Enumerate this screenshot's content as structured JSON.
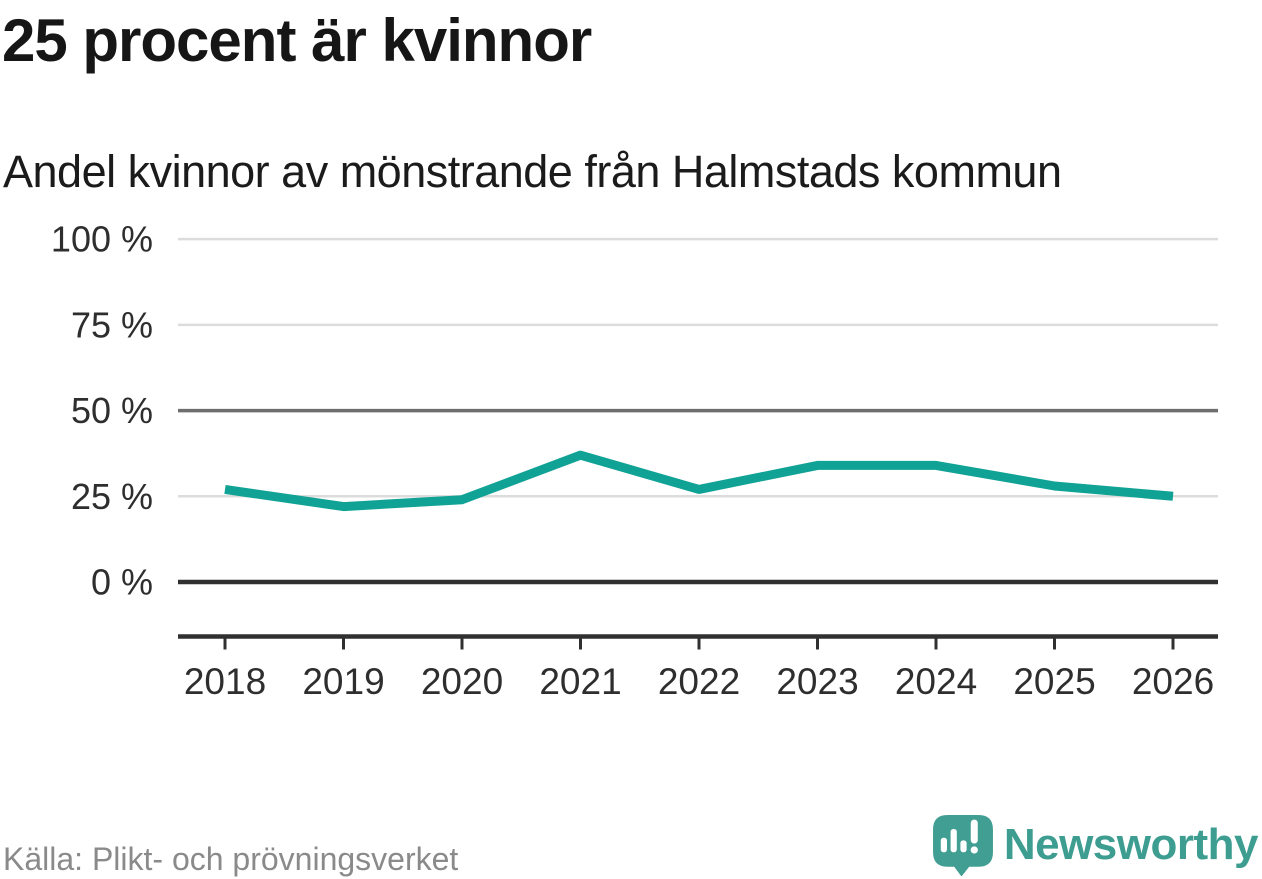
{
  "title": "25 procent är kvinnor",
  "subtitle": "Andel kvinnor av mönstrande från Halmstads kommun",
  "source": "Källa: Plikt- och prövningsverket",
  "brand": {
    "name": "Newsworthy",
    "icon": "newsworthy-speech-bubble-bar-chart-icon",
    "color": "#3d9d90",
    "icon_color": "#419e92"
  },
  "chart_data": {
    "type": "line",
    "title": "25 procent är kvinnor",
    "subtitle": "Andel kvinnor av mönstrande från Halmstads kommun",
    "categories": [
      "2018",
      "2019",
      "2020",
      "2021",
      "2022",
      "2023",
      "2024",
      "2025",
      "2026"
    ],
    "series": [
      {
        "name": "Andel kvinnor av mönstrande",
        "values": [
          27,
          22,
          24,
          37,
          27,
          34,
          34,
          28,
          25
        ]
      }
    ],
    "unit": "%",
    "xlabel": "",
    "ylabel": "",
    "ylim": [
      0,
      100
    ],
    "grid": "horizontal",
    "legend": "none",
    "y_ticks": [
      {
        "value": 0,
        "label": "0 %",
        "style": "strong"
      },
      {
        "value": 25,
        "label": "25 %",
        "style": "light"
      },
      {
        "value": 50,
        "label": "50 %",
        "style": "medium"
      },
      {
        "value": 75,
        "label": "75 %",
        "style": "light"
      },
      {
        "value": 100,
        "label": "100 %",
        "style": "light"
      }
    ],
    "colors": {
      "line": "#0fa295",
      "grid_light": "#dcdcdc",
      "grid_medium": "#6e6e6e",
      "grid_strong": "#303030",
      "axis": "#303030",
      "tick_label": "#2e2e2e",
      "title": "#161616",
      "source": "#8a8a8a"
    }
  }
}
